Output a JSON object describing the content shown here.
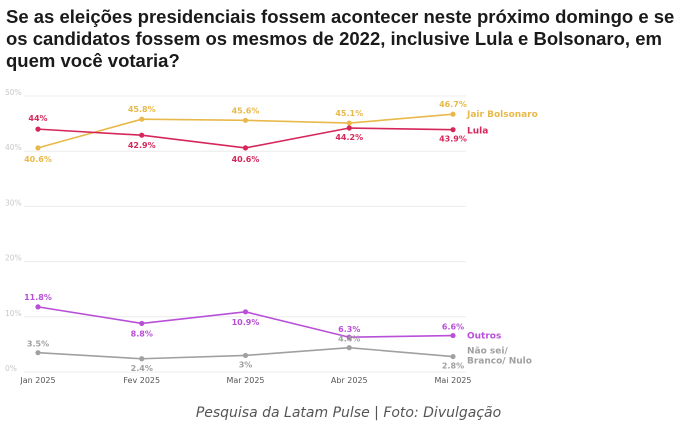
{
  "title": "Se as eleições presidenciais fossem acontecer neste próximo domingo e se os candidatos fossem os mesmos de 2022, inclusive Lula e Bolsonaro, em quem você votaria?",
  "caption": "Pesquisa da Latam Pulse | Foto: Divulgação",
  "chart_data": {
    "type": "line",
    "categories": [
      "Jan 2025",
      "Fev 2025",
      "Mar 2025",
      "Abr 2025",
      "Mai 2025"
    ],
    "yticks": [
      "0%",
      "10%",
      "20%",
      "30%",
      "40%",
      "50%"
    ],
    "ylim": [
      0,
      50
    ],
    "grid": true,
    "legend": "end-of-line labels",
    "series": [
      {
        "name": "Jair Bolsonaro",
        "color": "#e8b94a",
        "values": [
          40.6,
          45.8,
          45.6,
          45.1,
          46.7
        ],
        "labels": [
          "40.6%",
          "45.8%",
          "45.6%",
          "45.1%",
          "46.7%"
        ]
      },
      {
        "name": "Lula",
        "color": "#d6275a",
        "values": [
          44,
          42.9,
          40.6,
          44.2,
          43.9
        ],
        "labels": [
          "44%",
          "42.9%",
          "40.6%",
          "44.2%",
          "43.9%"
        ]
      },
      {
        "name": "Outros",
        "color": "#b94fd8",
        "values": [
          11.8,
          8.8,
          10.9,
          6.3,
          6.6
        ],
        "labels": [
          "11.8%",
          "8.8%",
          "10.9%",
          "6.3%",
          "6.6%"
        ]
      },
      {
        "name": "Não sei/ Branco/ Nulo",
        "color": "#a0a0a0",
        "values": [
          3.5,
          2.4,
          3,
          4.4,
          2.8
        ],
        "labels": [
          "3.5%",
          "2.4%",
          "3%",
          "4.4%",
          "2.8%"
        ]
      }
    ]
  }
}
